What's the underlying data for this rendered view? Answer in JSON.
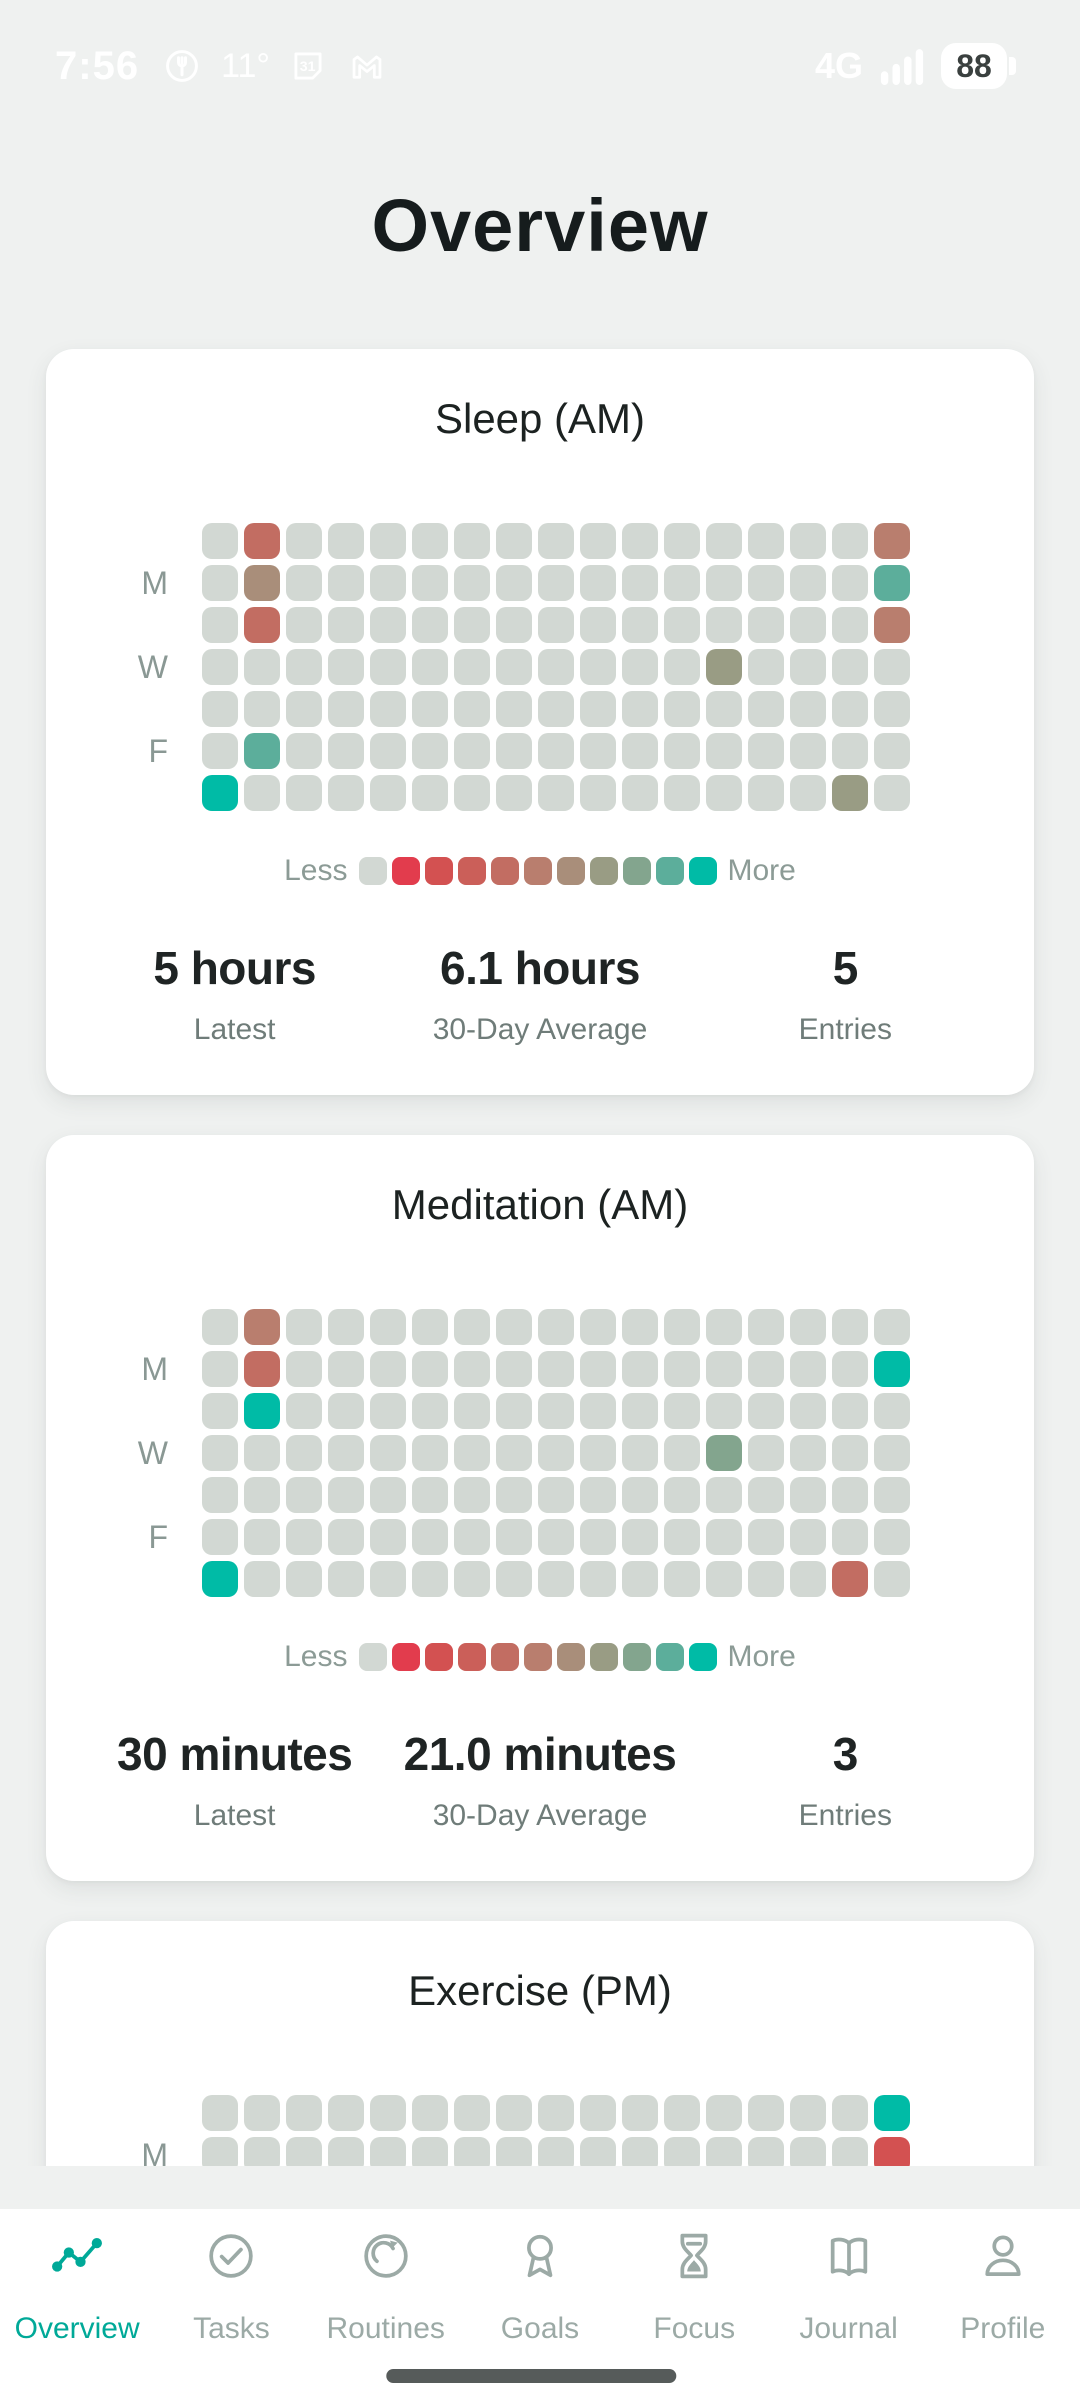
{
  "status_bar": {
    "time": "7:56",
    "temperature": "11°",
    "calendar_day": "31",
    "network": "4G",
    "battery": "88"
  },
  "page": {
    "title": "Overview"
  },
  "heatmap": {
    "base_cell_color": "#d2d8d3",
    "rows": 7,
    "cols": 17,
    "day_label_rows": [
      1,
      3,
      5
    ],
    "legend": {
      "less_label": "Less",
      "more_label": "More",
      "colors": [
        "#d2d8d3",
        "#e23c4d",
        "#d35151",
        "#cb5f59",
        "#c26d62",
        "#b97e6e",
        "#a98e7a",
        "#999c84",
        "#83a58e",
        "#5cae9b",
        "#00bba6"
      ]
    }
  },
  "cards": [
    {
      "title": "Sleep (AM)",
      "day_labels": [
        "M",
        "W",
        "F"
      ],
      "legend_visible": true,
      "cells": [
        {
          "r": 0,
          "c": 1,
          "color": 4
        },
        {
          "r": 0,
          "c": 16,
          "color": 5
        },
        {
          "r": 1,
          "c": 1,
          "color": 6
        },
        {
          "r": 1,
          "c": 16,
          "color": 9
        },
        {
          "r": 2,
          "c": 1,
          "color": 4
        },
        {
          "r": 2,
          "c": 16,
          "color": 5
        },
        {
          "r": 3,
          "c": 12,
          "color": 7
        },
        {
          "r": 5,
          "c": 1,
          "color": 9
        },
        {
          "r": 6,
          "c": 0,
          "color": 10
        },
        {
          "r": 6,
          "c": 15,
          "color": 7
        }
      ],
      "stats": [
        {
          "value": "5 hours",
          "label": "Latest"
        },
        {
          "value": "6.1 hours",
          "label": "30-Day Average"
        },
        {
          "value": "5",
          "label": "Entries"
        }
      ]
    },
    {
      "title": "Meditation (AM)",
      "day_labels": [
        "M",
        "W",
        "F"
      ],
      "legend_visible": true,
      "cells": [
        {
          "r": 0,
          "c": 1,
          "color": 5
        },
        {
          "r": 1,
          "c": 1,
          "color": 4
        },
        {
          "r": 1,
          "c": 16,
          "color": 10
        },
        {
          "r": 2,
          "c": 1,
          "color": 10
        },
        {
          "r": 3,
          "c": 12,
          "color": 8
        },
        {
          "r": 6,
          "c": 0,
          "color": 10
        },
        {
          "r": 6,
          "c": 15,
          "color": 4
        }
      ],
      "stats": [
        {
          "value": "30 minutes",
          "label": "Latest"
        },
        {
          "value": "21.0 minutes",
          "label": "30-Day Average"
        },
        {
          "value": "3",
          "label": "Entries"
        }
      ]
    },
    {
      "title": "Exercise (PM)",
      "day_labels": [
        "M",
        "W",
        "F"
      ],
      "legend_visible": false,
      "cells": [
        {
          "r": 0,
          "c": 16,
          "color": 10
        },
        {
          "r": 1,
          "c": 16,
          "color": 2
        }
      ]
    }
  ],
  "nav": {
    "active_color": "#00a998",
    "inactive_color": "#9caaa6",
    "items": [
      {
        "label": "Overview",
        "icon": "activity-icon",
        "active": true
      },
      {
        "label": "Tasks",
        "icon": "check-circle-icon",
        "active": false
      },
      {
        "label": "Routines",
        "icon": "repeat-circle-icon",
        "active": false
      },
      {
        "label": "Goals",
        "icon": "award-icon",
        "active": false
      },
      {
        "label": "Focus",
        "icon": "hourglass-icon",
        "active": false
      },
      {
        "label": "Journal",
        "icon": "book-icon",
        "active": false
      },
      {
        "label": "Profile",
        "icon": "person-icon",
        "active": false
      }
    ]
  }
}
